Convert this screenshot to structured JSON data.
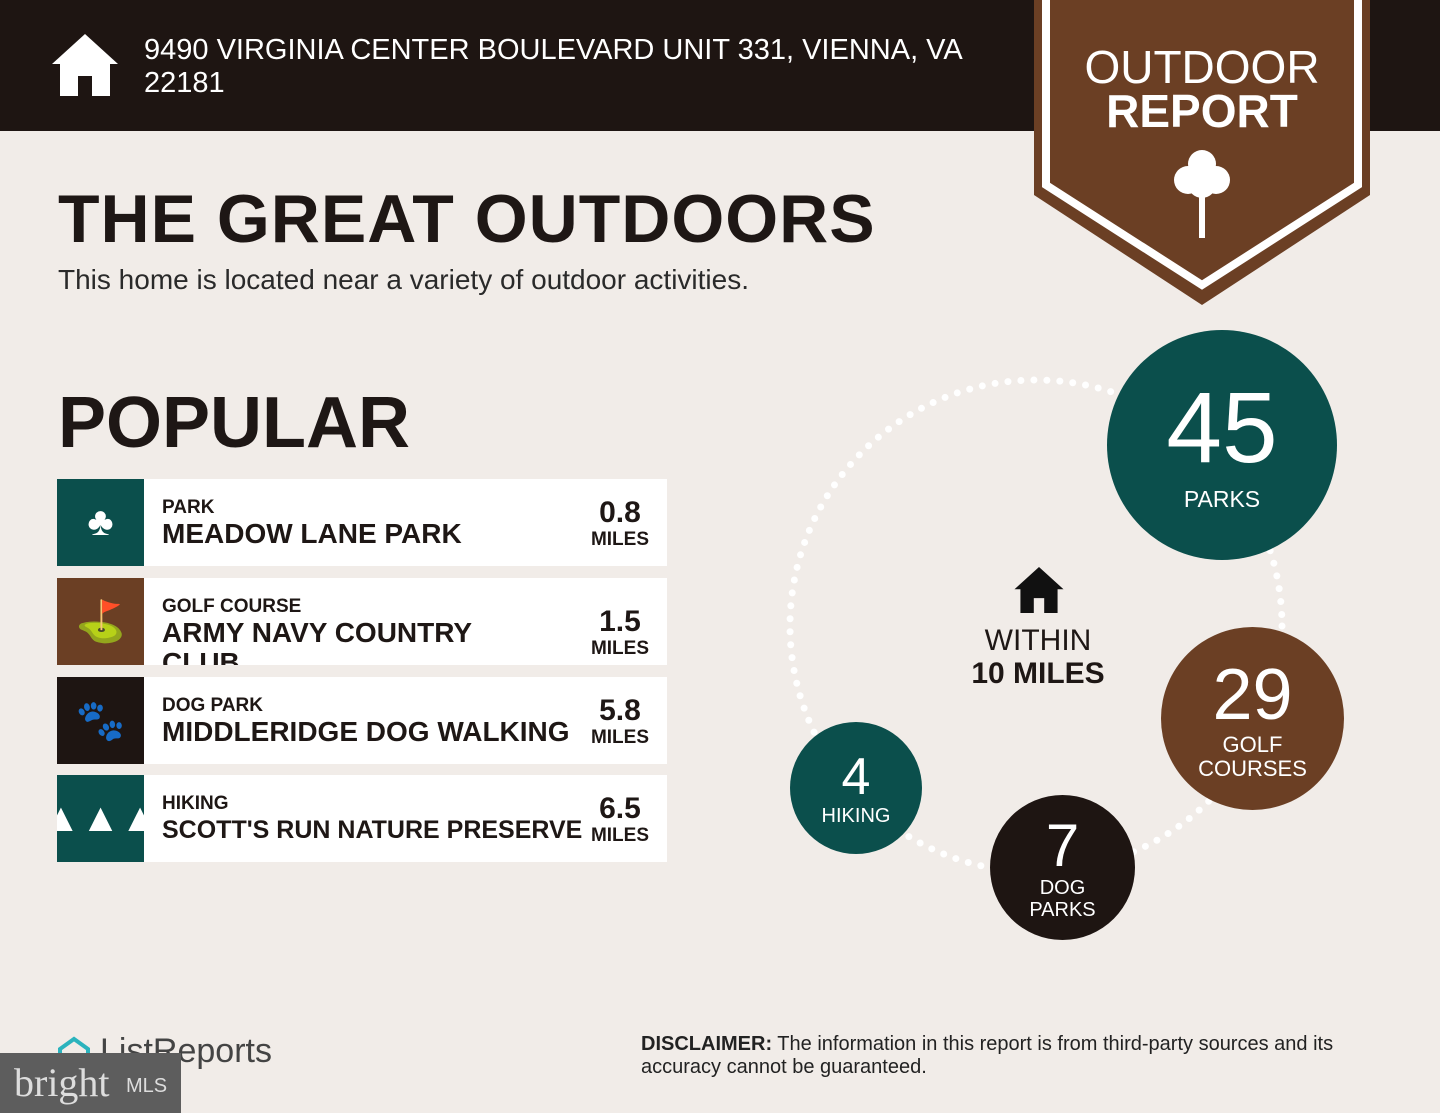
{
  "header": {
    "address": "9490 VIRGINIA CENTER BOULEVARD UNIT 331, VIENNA, VA 22181",
    "icon": "home-icon"
  },
  "banner": {
    "line1": "OUTDOOR",
    "line2": "REPORT",
    "icon": "tree-icon"
  },
  "title": "THE GREAT OUTDOORS",
  "subtitle": "This home is located near a variety of outdoor activities.",
  "popular": {
    "heading": "POPULAR",
    "items": [
      {
        "category": "PARK",
        "name": "MEADOW LANE PARK",
        "distance": "0.8",
        "unit": "MILES",
        "color": "#0b4f4c",
        "icon": "park-icon"
      },
      {
        "category": "GOLF COURSE",
        "name": "ARMY NAVY COUNTRY CLUB",
        "distance": "1.5",
        "unit": "MILES",
        "color": "#6b3f24",
        "icon": "golf-bag-icon"
      },
      {
        "category": "DOG PARK",
        "name": "MIDDLERIDGE DOG WALKING",
        "distance": "5.8",
        "unit": "MILES",
        "color": "#1e1512",
        "icon": "paw-icon"
      },
      {
        "category": "HIKING",
        "name": "SCOTT'S RUN NATURE PRESERVE",
        "distance": "6.5",
        "unit": "MILES",
        "color": "#0b4f4c",
        "icon": "pine-trees-icon"
      }
    ]
  },
  "summary": {
    "within": "WITHIN",
    "radius": "10 MILES",
    "parks": {
      "count": "45",
      "label": "PARKS"
    },
    "golf": {
      "count": "29",
      "label1": "GOLF",
      "label2": "COURSES"
    },
    "dog": {
      "count": "7",
      "label1": "DOG",
      "label2": "PARKS"
    },
    "hiking": {
      "count": "4",
      "label": "HIKING"
    }
  },
  "footer": {
    "brand": "ListReports",
    "mls_brand": "bright",
    "mls_suffix": "MLS",
    "disclaimer_label": "DISCLAIMER:",
    "disclaimer": " The information in this report is from third-party sources and its accuracy cannot be guaranteed."
  }
}
